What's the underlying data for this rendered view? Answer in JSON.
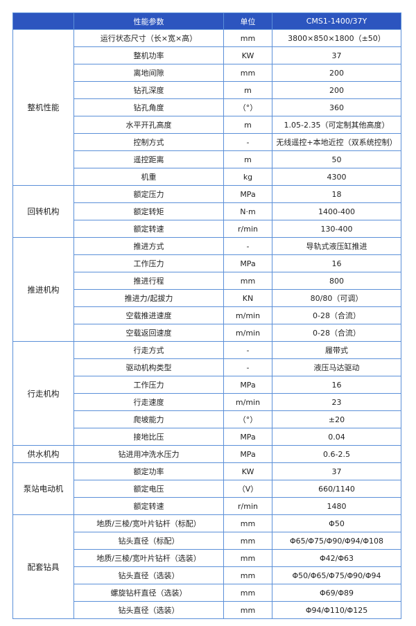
{
  "header": {
    "category": "",
    "parameter": "性能参数",
    "unit": "单位",
    "model": "CMS1-1400/37Y"
  },
  "colors": {
    "header_bg": "#2c55bf",
    "border": "#5a8fd8"
  },
  "groups": [
    {
      "category": "整机性能",
      "rows": [
        {
          "param": "运行状态尺寸（长×宽×高）",
          "unit": "mm",
          "value": "3800×850×1800（±50）"
        },
        {
          "param": "整机功率",
          "unit": "KW",
          "value": "37"
        },
        {
          "param": "离地间隙",
          "unit": "mm",
          "value": "200"
        },
        {
          "param": "钻孔深度",
          "unit": "m",
          "value": "200"
        },
        {
          "param": "钻孔角度",
          "unit": "（°）",
          "value": "360"
        },
        {
          "param": "水平开孔高度",
          "unit": "m",
          "value": "1.05-2.35（可定制其他高度）"
        },
        {
          "param": "控制方式",
          "unit": "-",
          "value": "无线遥控+本地近控（双系统控制）"
        },
        {
          "param": "遥控距离",
          "unit": "m",
          "value": "50"
        },
        {
          "param": "机重",
          "unit": "kg",
          "value": "4300"
        }
      ]
    },
    {
      "category": "回转机构",
      "rows": [
        {
          "param": "额定压力",
          "unit": "MPa",
          "value": "18"
        },
        {
          "param": "额定转矩",
          "unit": "N·m",
          "value": "1400-400"
        },
        {
          "param": "额定转速",
          "unit": "r/min",
          "value": "130-400"
        }
      ]
    },
    {
      "category": "推进机构",
      "rows": [
        {
          "param": "推进方式",
          "unit": "-",
          "value": "导轨式液压缸推进"
        },
        {
          "param": "工作压力",
          "unit": "MPa",
          "value": "16"
        },
        {
          "param": "推进行程",
          "unit": "mm",
          "value": "800"
        },
        {
          "param": "推进力/起拔力",
          "unit": "KN",
          "value": "80/80（可调）"
        },
        {
          "param": "空载推进速度",
          "unit": "m/min",
          "value": "0-28（合流）"
        },
        {
          "param": "空载返回速度",
          "unit": "m/min",
          "value": "0-28（合流）"
        }
      ]
    },
    {
      "category": "行走机构",
      "rows": [
        {
          "param": "行走方式",
          "unit": "-",
          "value": "履带式"
        },
        {
          "param": "驱动机构类型",
          "unit": "-",
          "value": "液压马达驱动"
        },
        {
          "param": "工作压力",
          "unit": "MPa",
          "value": "16"
        },
        {
          "param": "行走速度",
          "unit": "m/min",
          "value": "23"
        },
        {
          "param": "爬坡能力",
          "unit": "（°）",
          "value": "±20"
        },
        {
          "param": "接地比压",
          "unit": "MPa",
          "value": "0.04"
        }
      ]
    },
    {
      "category": "供水机构",
      "rows": [
        {
          "param": "钻进用冲洗水压力",
          "unit": "MPa",
          "value": "0.6-2.5"
        }
      ]
    },
    {
      "category": "泵站电动机",
      "rows": [
        {
          "param": "额定功率",
          "unit": "KW",
          "value": "37"
        },
        {
          "param": "额定电压",
          "unit": "（V）",
          "value": "660/1140"
        },
        {
          "param": "额定转速",
          "unit": "r/min",
          "value": "1480"
        }
      ]
    },
    {
      "category": "配套钻具",
      "rows": [
        {
          "param": "地质/三棱/宽叶片钻杆（标配）",
          "unit": "mm",
          "value": "Φ50"
        },
        {
          "param": "钻头直径（标配）",
          "unit": "mm",
          "value": "Φ65/Φ75/Φ90/Φ94/Φ108"
        },
        {
          "param": "地质/三棱/宽叶片钻杆（选装）",
          "unit": "mm",
          "value": "Φ42/Φ63"
        },
        {
          "param": "钻头直径（选装）",
          "unit": "mm",
          "value": "Φ50/Φ65/Φ75/Φ90/Φ94"
        },
        {
          "param": "螺旋钻杆直径（选装）",
          "unit": "mm",
          "value": "Φ69/Φ89"
        },
        {
          "param": "钻头直径（选装）",
          "unit": "mm",
          "value": "Φ94/Φ110/Φ125"
        }
      ]
    }
  ]
}
